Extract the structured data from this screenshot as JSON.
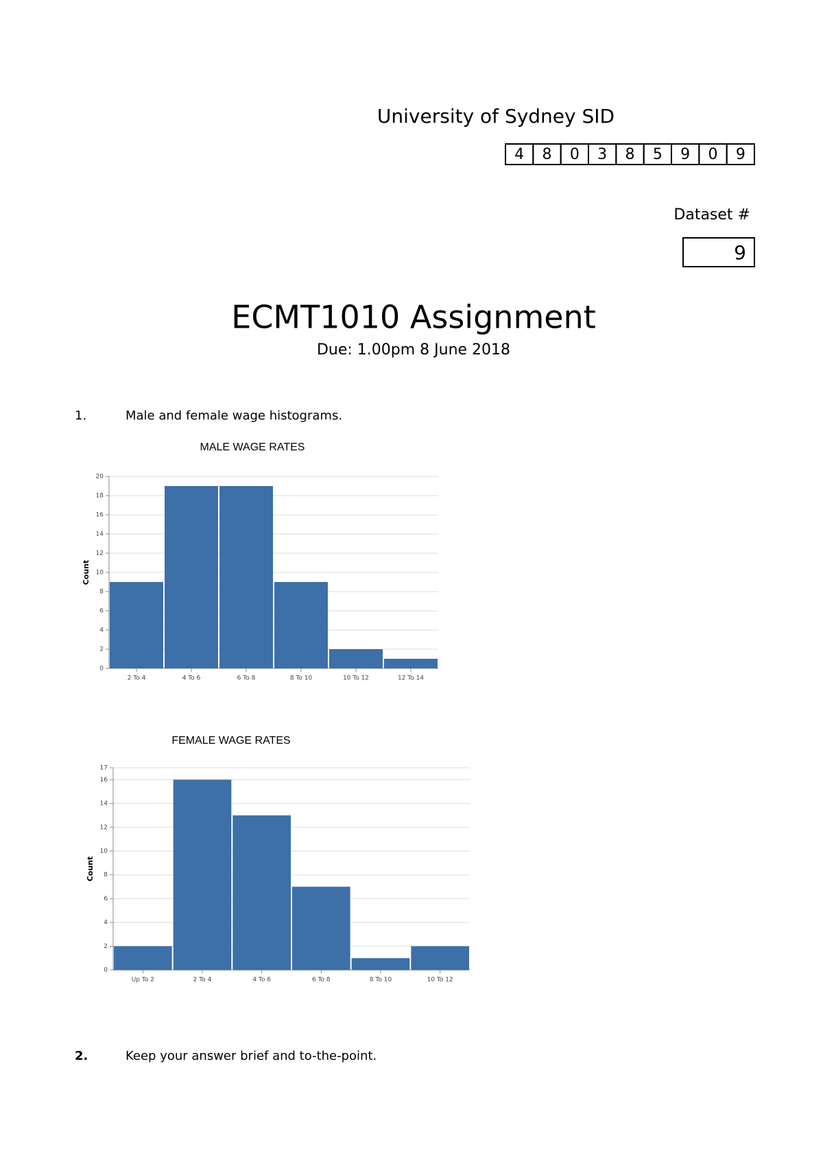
{
  "header": {
    "sid_label": "University of Sydney SID",
    "sid_digits": [
      "4",
      "8",
      "0",
      "3",
      "8",
      "5",
      "9",
      "0",
      "9"
    ],
    "dataset_label": "Dataset #",
    "dataset_number": "9"
  },
  "title": "ECMT1010 Assignment",
  "due": "Due: 1.00pm 8 June 2018",
  "questions": [
    {
      "number": "1.",
      "text": "Male and female wage histograms."
    },
    {
      "number": "2.",
      "text": "Keep your answer brief and to-the-point."
    }
  ],
  "chart_data": [
    {
      "type": "bar",
      "title": "MALE WAGE RATES",
      "y_label": "Count",
      "color": "#3d6fa9",
      "grid": true,
      "categories": [
        "2 To 4",
        "4 To 6",
        "6 To 8",
        "8 To 10",
        "10 To 12",
        "12 To 14"
      ],
      "values": [
        9,
        19,
        19,
        9,
        2,
        1
      ],
      "ylim": [
        0,
        20
      ],
      "yticks": [
        0,
        2,
        4,
        6,
        8,
        10,
        12,
        14,
        16,
        18,
        20
      ]
    },
    {
      "type": "bar",
      "title": "FEMALE WAGE RATES",
      "y_label": "Count",
      "color": "#3d6fa9",
      "grid": true,
      "categories": [
        "Up To 2",
        "2 To 4",
        "4 To 6",
        "6 To 8",
        "8 To 10",
        "10 To 12"
      ],
      "values": [
        2,
        16,
        13,
        7,
        1,
        2
      ],
      "ylim": [
        0,
        17
      ],
      "yticks": [
        0,
        2,
        4,
        6,
        8,
        10,
        12,
        14,
        16,
        17
      ]
    }
  ]
}
